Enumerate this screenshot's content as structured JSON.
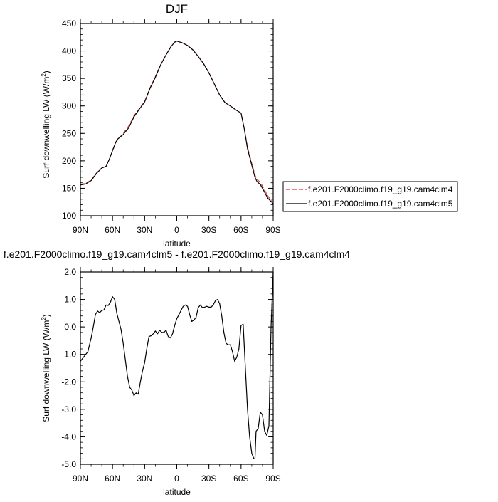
{
  "chart_data": [
    {
      "type": "line",
      "title": "DJF",
      "xlabel": "latitude",
      "ylabel": "Surf downwelling LW (W/m",
      "ylabel_sup": "2",
      "ylabel_close": ")",
      "xlim": [
        90,
        -90
      ],
      "ylim": [
        100,
        450
      ],
      "yticks": [
        100,
        150,
        200,
        250,
        300,
        350,
        400,
        450
      ],
      "ytick_labels": [
        "100",
        "150",
        "200",
        "250",
        "300",
        "350",
        "400",
        "450"
      ],
      "xticks": [
        90,
        60,
        30,
        0,
        -30,
        -60,
        -90
      ],
      "xtick_labels": [
        "90N",
        "60N",
        "30N",
        "0",
        "30S",
        "60S",
        "90S"
      ],
      "legend": {
        "placement": "right",
        "entries": [
          {
            "label": "f.e201.F2000climo.f19_g19.cam4clm4",
            "color": "#e8352f",
            "dash": "dashed"
          },
          {
            "label": "f.e201.F2000climo.f19_g19.cam4clm5",
            "color": "#000000",
            "dash": "solid"
          }
        ]
      },
      "series": [
        {
          "name": "f.e201.F2000climo.f19_g19.cam4clm4",
          "color": "#e8352f",
          "style": "dashed",
          "x": [
            90,
            85,
            80,
            75,
            70,
            66,
            63,
            60,
            57,
            55,
            50,
            45,
            40,
            35,
            30,
            25,
            20,
            15,
            10,
            5,
            2,
            0,
            -5,
            -10,
            -15,
            -20,
            -25,
            -30,
            -35,
            -40,
            -45,
            -50,
            -55,
            -60,
            -63,
            -66,
            -70,
            -73,
            -75,
            -78,
            -80,
            -85,
            -90
          ],
          "y": [
            157,
            159,
            165,
            178,
            187,
            190,
            203,
            218,
            233,
            239,
            250,
            263,
            282,
            295,
            308,
            333,
            353,
            375,
            393,
            410,
            416,
            418,
            415,
            410,
            402,
            390,
            377,
            360,
            340,
            320,
            306,
            300,
            293,
            287,
            258,
            225,
            195,
            174,
            166,
            161,
            154,
            136,
            124
          ]
        },
        {
          "name": "f.e201.F2000climo.f19_g19.cam4clm5",
          "color": "#000000",
          "style": "solid",
          "x": [
            90,
            85,
            80,
            75,
            70,
            66,
            63,
            60,
            57,
            55,
            50,
            45,
            40,
            35,
            30,
            25,
            20,
            15,
            10,
            5,
            2,
            0,
            -5,
            -10,
            -15,
            -20,
            -25,
            -30,
            -35,
            -40,
            -45,
            -50,
            -55,
            -60,
            -63,
            -66,
            -70,
            -73,
            -75,
            -78,
            -80,
            -85,
            -90
          ],
          "y": [
            156,
            158,
            164,
            177,
            187,
            190,
            203,
            219,
            234,
            240,
            248,
            260,
            280,
            294,
            307,
            332,
            352,
            375,
            393,
            409,
            416,
            418,
            415,
            410,
            402,
            390,
            377,
            360,
            340,
            320,
            306,
            300,
            293,
            287,
            258,
            222,
            192,
            170,
            162,
            157,
            150,
            132,
            122
          ]
        }
      ]
    },
    {
      "type": "line",
      "title": "f.e201.F2000climo.f19_g19.cam4clm5 - f.e201.F2000climo.f19_g19.cam4clm4",
      "xlabel": "latitude",
      "ylabel": "Surf downwelling LW (W/m",
      "ylabel_sup": "2",
      "ylabel_close": ")",
      "xlim": [
        90,
        -90
      ],
      "ylim": [
        -5.0,
        2.0
      ],
      "yticks": [
        -5,
        -4,
        -3,
        -2,
        -1,
        0,
        1,
        2
      ],
      "ytick_labels": [
        "-5.0",
        "-4.0",
        "-3.0",
        "-2.0",
        "-1.0",
        "0.0",
        "1.0",
        "2.0"
      ],
      "xticks": [
        90,
        60,
        30,
        0,
        -30,
        -60,
        -90
      ],
      "xtick_labels": [
        "90N",
        "60N",
        "30N",
        "0",
        "30S",
        "60S",
        "90S"
      ],
      "series": [
        {
          "color": "#000000",
          "style": "solid",
          "x": [
            90,
            86,
            83,
            80,
            78,
            76,
            74,
            72,
            70,
            68,
            66,
            64,
            62,
            60,
            58,
            56,
            54,
            52,
            50,
            48,
            46,
            44,
            42,
            40,
            38,
            36,
            34,
            32,
            30,
            28,
            26,
            24,
            22,
            20,
            18,
            16,
            14,
            12,
            10,
            8,
            6,
            4,
            2,
            0,
            -2,
            -4,
            -6,
            -8,
            -10,
            -12,
            -14,
            -16,
            -18,
            -20,
            -22,
            -24,
            -26,
            -28,
            -30,
            -32,
            -34,
            -36,
            -38,
            -40,
            -42,
            -44,
            -46,
            -48,
            -50,
            -52,
            -54,
            -56,
            -58,
            -60,
            -62,
            -64,
            -66,
            -68,
            -70,
            -72,
            -73,
            -74,
            -76,
            -78,
            -80,
            -82,
            -84,
            -86,
            -88,
            -90
          ],
          "y": [
            -1.25,
            -1.05,
            -0.9,
            -0.4,
            0.0,
            0.45,
            0.58,
            0.52,
            0.6,
            0.62,
            0.8,
            0.78,
            0.9,
            1.1,
            1.0,
            0.5,
            0.2,
            -0.1,
            -0.6,
            -1.2,
            -1.8,
            -2.2,
            -2.3,
            -2.5,
            -2.4,
            -2.45,
            -2.0,
            -1.6,
            -1.3,
            -0.8,
            -0.35,
            -0.32,
            -0.25,
            -0.15,
            -0.25,
            -0.12,
            -0.2,
            -0.2,
            -0.12,
            -0.35,
            -0.4,
            -0.25,
            0.05,
            0.3,
            0.45,
            0.6,
            0.75,
            0.8,
            0.75,
            0.45,
            0.2,
            0.25,
            0.35,
            0.7,
            0.8,
            0.7,
            0.72,
            0.75,
            0.72,
            0.72,
            0.8,
            0.95,
            1.0,
            0.85,
            0.4,
            -0.2,
            -0.6,
            -0.65,
            -0.65,
            -0.9,
            -1.25,
            -1.1,
            -0.8,
            0.05,
            0.1,
            -1.5,
            -3.0,
            -4.0,
            -4.6,
            -4.8,
            -4.8,
            -3.8,
            -3.7,
            -3.1,
            -3.2,
            -3.8,
            -3.95,
            -3.6,
            0.0,
            2.0
          ]
        }
      ]
    }
  ]
}
